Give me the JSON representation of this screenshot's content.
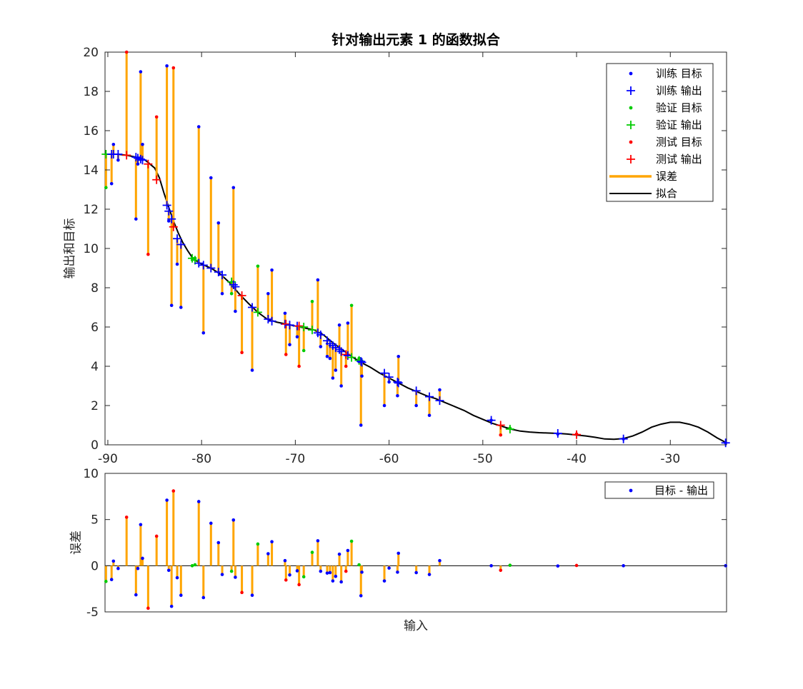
{
  "chart_data": [
    {
      "type": "scatter",
      "title": "针对输出元素 1 的函数拟合",
      "xlabel": "",
      "ylabel": "输出和目标",
      "xlim": [
        -90.3,
        -24
      ],
      "ylim": [
        0,
        20
      ],
      "xticks": [
        -90,
        -80,
        -70,
        -60,
        -50,
        -40,
        -30
      ],
      "yticks": [
        0,
        2,
        4,
        6,
        8,
        10,
        12,
        14,
        16,
        18,
        20
      ],
      "legend_position": "top-right",
      "legend": [
        {
          "label": "训练 目标",
          "kind": "dot",
          "color": "#0000ff"
        },
        {
          "label": "训练 输出",
          "kind": "plus",
          "color": "#0000ff"
        },
        {
          "label": "验证 目标",
          "kind": "dot",
          "color": "#00cc00"
        },
        {
          "label": "验证 输出",
          "kind": "plus",
          "color": "#00cc00"
        },
        {
          "label": "测试 目标",
          "kind": "dot",
          "color": "#ff0000"
        },
        {
          "label": "测试 输出",
          "kind": "plus",
          "color": "#ff0000"
        },
        {
          "label": "误差",
          "kind": "line",
          "color": "#ffa500"
        },
        {
          "label": "拟合",
          "kind": "line",
          "color": "#000000"
        }
      ],
      "fit_curve": {
        "x": [
          -90.3,
          -89,
          -88,
          -87,
          -86,
          -85,
          -84.5,
          -84,
          -83.5,
          -83,
          -82.5,
          -82,
          -81.5,
          -81,
          -80.5,
          -80,
          -79,
          -78,
          -77,
          -76,
          -75,
          -74,
          -73,
          -72,
          -71,
          -70,
          -69,
          -68,
          -67,
          -66,
          -65,
          -64,
          -63,
          -62,
          -61,
          -60,
          -59,
          -58,
          -57,
          -56,
          -55,
          -54,
          -53,
          -52,
          -51,
          -50,
          -49,
          -48,
          -47,
          -46,
          -45,
          -44,
          -43,
          -42,
          -41,
          -40,
          -39,
          -38,
          -37,
          -36,
          -35,
          -34,
          -33,
          -32,
          -31,
          -30,
          -29,
          -28,
          -27,
          -26,
          -25,
          -24
        ],
        "y": [
          14.8,
          14.8,
          14.75,
          14.65,
          14.5,
          14.1,
          13.6,
          12.8,
          12.1,
          11.4,
          10.8,
          10.3,
          9.9,
          9.55,
          9.35,
          9.2,
          9.0,
          8.7,
          8.25,
          7.7,
          7.2,
          6.75,
          6.4,
          6.25,
          6.15,
          6.05,
          5.95,
          5.85,
          5.6,
          5.2,
          4.85,
          4.5,
          4.2,
          3.95,
          3.65,
          3.4,
          3.15,
          2.9,
          2.7,
          2.5,
          2.35,
          2.15,
          1.95,
          1.75,
          1.5,
          1.3,
          1.1,
          0.95,
          0.8,
          0.7,
          0.65,
          0.62,
          0.6,
          0.58,
          0.55,
          0.5,
          0.45,
          0.38,
          0.3,
          0.28,
          0.32,
          0.45,
          0.65,
          0.9,
          1.05,
          1.15,
          1.15,
          1.05,
          0.9,
          0.65,
          0.35,
          0.1
        ]
      },
      "points": [
        {
          "x": -90.2,
          "target": 13.1,
          "output": 14.8,
          "set": "validation"
        },
        {
          "x": -89.6,
          "target": 13.3,
          "output": 14.8,
          "set": "training"
        },
        {
          "x": -89.4,
          "target": 15.3,
          "output": 14.8,
          "set": "training"
        },
        {
          "x": -88.9,
          "target": 14.5,
          "output": 14.8,
          "set": "training"
        },
        {
          "x": -88.0,
          "target": 20.0,
          "output": 14.75,
          "set": "test"
        },
        {
          "x": -87.0,
          "target": 11.5,
          "output": 14.65,
          "set": "training"
        },
        {
          "x": -86.8,
          "target": 14.3,
          "output": 14.6,
          "set": "training"
        },
        {
          "x": -86.5,
          "target": 19.0,
          "output": 14.55,
          "set": "training"
        },
        {
          "x": -86.3,
          "target": 15.3,
          "output": 14.5,
          "set": "training"
        },
        {
          "x": -85.7,
          "target": 9.7,
          "output": 14.3,
          "set": "test"
        },
        {
          "x": -84.8,
          "target": 16.7,
          "output": 13.5,
          "set": "test"
        },
        {
          "x": -83.7,
          "target": 19.3,
          "output": 12.2,
          "set": "training"
        },
        {
          "x": -83.5,
          "target": 11.4,
          "output": 11.9,
          "set": "training"
        },
        {
          "x": -83.2,
          "target": 7.1,
          "output": 11.5,
          "set": "training"
        },
        {
          "x": -83.0,
          "target": 19.2,
          "output": 11.1,
          "set": "test"
        },
        {
          "x": -82.6,
          "target": 9.2,
          "output": 10.5,
          "set": "training"
        },
        {
          "x": -82.2,
          "target": 7.0,
          "output": 10.2,
          "set": "training"
        },
        {
          "x": -81.0,
          "target": 9.5,
          "output": 9.5,
          "set": "validation"
        },
        {
          "x": -80.7,
          "target": 9.5,
          "output": 9.4,
          "set": "validation"
        },
        {
          "x": -80.3,
          "target": 16.2,
          "output": 9.25,
          "set": "training"
        },
        {
          "x": -79.8,
          "target": 5.7,
          "output": 9.15,
          "set": "training"
        },
        {
          "x": -79.0,
          "target": 13.6,
          "output": 9.0,
          "set": "training"
        },
        {
          "x": -78.2,
          "target": 11.3,
          "output": 8.8,
          "set": "training"
        },
        {
          "x": -77.8,
          "target": 7.7,
          "output": 8.65,
          "set": "training"
        },
        {
          "x": -76.8,
          "target": 7.7,
          "output": 8.3,
          "set": "validation"
        },
        {
          "x": -76.6,
          "target": 13.1,
          "output": 8.15,
          "set": "training"
        },
        {
          "x": -76.4,
          "target": 6.8,
          "output": 8.05,
          "set": "training"
        },
        {
          "x": -75.7,
          "target": 4.7,
          "output": 7.6,
          "set": "test"
        },
        {
          "x": -74.6,
          "target": 3.8,
          "output": 7.0,
          "set": "training"
        },
        {
          "x": -74.0,
          "target": 9.1,
          "output": 6.75,
          "set": "validation"
        },
        {
          "x": -72.9,
          "target": 7.7,
          "output": 6.4,
          "set": "training"
        },
        {
          "x": -72.5,
          "target": 8.9,
          "output": 6.3,
          "set": "training"
        },
        {
          "x": -71.1,
          "target": 6.7,
          "output": 6.15,
          "set": "training"
        },
        {
          "x": -71.0,
          "target": 4.6,
          "output": 6.15,
          "set": "test"
        },
        {
          "x": -70.6,
          "target": 5.1,
          "output": 6.1,
          "set": "training"
        },
        {
          "x": -69.8,
          "target": 5.5,
          "output": 6.05,
          "set": "training"
        },
        {
          "x": -69.6,
          "target": 4.0,
          "output": 6.05,
          "set": "test"
        },
        {
          "x": -69.1,
          "target": 4.8,
          "output": 6.0,
          "set": "validation"
        },
        {
          "x": -68.2,
          "target": 7.3,
          "output": 5.85,
          "set": "validation"
        },
        {
          "x": -67.6,
          "target": 8.4,
          "output": 5.7,
          "set": "training"
        },
        {
          "x": -67.3,
          "target": 5.0,
          "output": 5.6,
          "set": "training"
        },
        {
          "x": -66.6,
          "target": 4.5,
          "output": 5.3,
          "set": "training"
        },
        {
          "x": -66.3,
          "target": 4.4,
          "output": 5.15,
          "set": "training"
        },
        {
          "x": -66.0,
          "target": 3.4,
          "output": 5.05,
          "set": "training"
        },
        {
          "x": -65.7,
          "target": 3.8,
          "output": 4.95,
          "set": "training"
        },
        {
          "x": -65.3,
          "target": 6.1,
          "output": 4.85,
          "set": "training"
        },
        {
          "x": -65.1,
          "target": 3.0,
          "output": 4.75,
          "set": "training"
        },
        {
          "x": -64.6,
          "target": 4.0,
          "output": 4.6,
          "set": "test"
        },
        {
          "x": -64.4,
          "target": 6.2,
          "output": 4.55,
          "set": "training"
        },
        {
          "x": -64.0,
          "target": 7.1,
          "output": 4.45,
          "set": "validation"
        },
        {
          "x": -63.2,
          "target": 4.4,
          "output": 4.3,
          "set": "validation"
        },
        {
          "x": -63.0,
          "target": 1.0,
          "output": 4.25,
          "set": "training"
        },
        {
          "x": -62.9,
          "target": 3.5,
          "output": 4.2,
          "set": "training"
        },
        {
          "x": -60.5,
          "target": 2.0,
          "output": 3.65,
          "set": "training"
        },
        {
          "x": -60.0,
          "target": 3.2,
          "output": 3.45,
          "set": "training"
        },
        {
          "x": -59.1,
          "target": 2.5,
          "output": 3.2,
          "set": "training"
        },
        {
          "x": -59.0,
          "target": 4.5,
          "output": 3.15,
          "set": "training"
        },
        {
          "x": -57.1,
          "target": 2.0,
          "output": 2.75,
          "set": "training"
        },
        {
          "x": -55.7,
          "target": 1.5,
          "output": 2.45,
          "set": "training"
        },
        {
          "x": -54.6,
          "target": 2.8,
          "output": 2.25,
          "set": "training"
        },
        {
          "x": -49.1,
          "target": 1.25,
          "output": 1.25,
          "set": "training"
        },
        {
          "x": -48.1,
          "target": 0.5,
          "output": 1.0,
          "set": "test"
        },
        {
          "x": -47.1,
          "target": 0.85,
          "output": 0.8,
          "set": "validation"
        },
        {
          "x": -42.0,
          "target": 0.55,
          "output": 0.58,
          "set": "training"
        },
        {
          "x": -40.0,
          "target": 0.55,
          "output": 0.52,
          "set": "test"
        },
        {
          "x": -35.0,
          "target": 0.3,
          "output": 0.3,
          "set": "training"
        },
        {
          "x": -24.1,
          "target": 0.1,
          "output": 0.1,
          "set": "training"
        }
      ]
    },
    {
      "type": "scatter",
      "title": "",
      "xlabel": "输入",
      "ylabel": "误差",
      "xlim": [
        -90.3,
        -24
      ],
      "ylim": [
        -5,
        10
      ],
      "yticks": [
        -5,
        0,
        5,
        10
      ],
      "legend_position": "top-right",
      "legend": [
        {
          "label": "目标 - 输出",
          "kind": "dot",
          "color": "#0000ff"
        }
      ],
      "errors": "target minus output for each point of the upper chart"
    }
  ]
}
